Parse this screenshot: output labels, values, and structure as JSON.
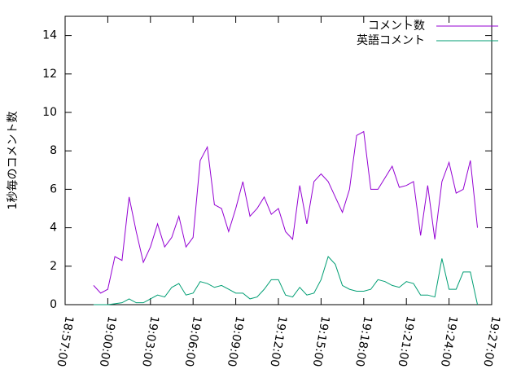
{
  "chart_data": {
    "type": "line",
    "ylabel": "1秒毎のコメント数",
    "x": [
      "18:59:00",
      "18:59:30",
      "19:00:00",
      "19:00:30",
      "19:01:00",
      "19:01:30",
      "19:02:00",
      "19:02:30",
      "19:03:00",
      "19:03:30",
      "19:04:00",
      "19:04:30",
      "19:05:00",
      "19:05:30",
      "19:06:00",
      "19:06:30",
      "19:07:00",
      "19:07:30",
      "19:08:00",
      "19:08:30",
      "19:09:00",
      "19:09:30",
      "19:10:00",
      "19:10:30",
      "19:11:00",
      "19:11:30",
      "19:12:00",
      "19:12:30",
      "19:13:00",
      "19:13:30",
      "19:14:00",
      "19:14:30",
      "19:15:00",
      "19:15:30",
      "19:16:00",
      "19:16:30",
      "19:17:00",
      "19:17:30",
      "19:18:00",
      "19:18:30",
      "19:19:00",
      "19:19:30",
      "19:20:00",
      "19:20:30",
      "19:21:00",
      "19:21:30",
      "19:22:00",
      "19:22:30",
      "19:23:00",
      "19:23:30",
      "19:24:00",
      "19:24:30",
      "19:25:00",
      "19:25:30",
      "19:26:00"
    ],
    "series": [
      {
        "name": "コメント数",
        "color": "#9400d3",
        "values": [
          1.0,
          0.6,
          0.8,
          2.5,
          2.3,
          5.6,
          3.8,
          2.2,
          3.0,
          4.2,
          3.0,
          3.5,
          4.6,
          3.0,
          3.5,
          7.5,
          8.2,
          5.2,
          5.0,
          3.8,
          5.0,
          6.4,
          4.6,
          5.0,
          5.6,
          4.7,
          5.0,
          3.8,
          3.4,
          6.2,
          4.2,
          6.4,
          6.8,
          6.4,
          5.6,
          4.8,
          6.0,
          8.8,
          9.0,
          6.0,
          6.0,
          6.6,
          7.2,
          6.1,
          6.2,
          6.4,
          3.6,
          6.2,
          3.4,
          6.4,
          7.4,
          5.8,
          6.0,
          7.5,
          4.0
        ]
      },
      {
        "name": "英語コメント",
        "color": "#009e73",
        "values": [
          0,
          0,
          0,
          0.05,
          0.1,
          0.3,
          0.1,
          0.1,
          0.3,
          0.5,
          0.4,
          0.9,
          1.1,
          0.5,
          0.6,
          1.2,
          1.1,
          0.9,
          1.0,
          0.8,
          0.6,
          0.6,
          0.3,
          0.4,
          0.8,
          1.3,
          1.3,
          0.5,
          0.4,
          0.9,
          0.5,
          0.6,
          1.3,
          2.5,
          2.1,
          1.0,
          0.8,
          0.7,
          0.7,
          0.8,
          1.3,
          1.2,
          1.0,
          0.9,
          1.2,
          1.1,
          0.5,
          0.5,
          0.4,
          2.4,
          0.8,
          0.8,
          1.7,
          1.7,
          0
        ]
      }
    ],
    "xlim": [
      "18:57:00",
      "19:27:00"
    ],
    "xticks": [
      "18:57:00",
      "19:00:00",
      "19:03:00",
      "19:06:00",
      "19:09:00",
      "19:12:00",
      "19:15:00",
      "19:18:00",
      "19:21:00",
      "19:24:00",
      "19:27:00"
    ],
    "ylim": [
      0,
      15
    ],
    "yticks": [
      0,
      2,
      4,
      6,
      8,
      10,
      12,
      14
    ],
    "legend": "top-right"
  }
}
